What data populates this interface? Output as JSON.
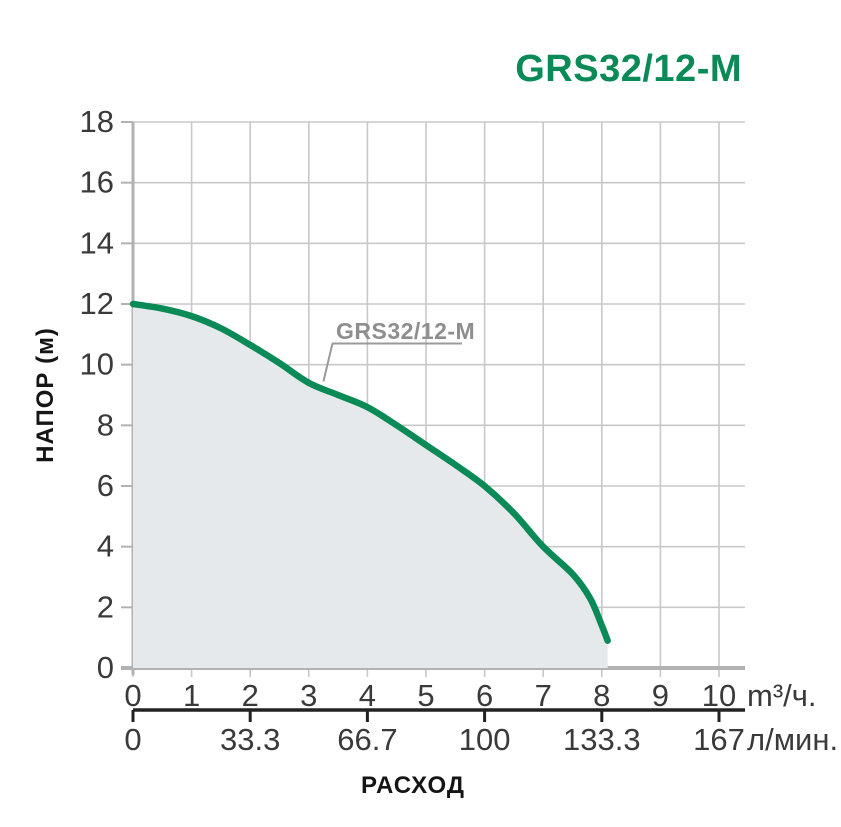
{
  "page": {
    "background": "#ffffff"
  },
  "header": {
    "title": "GRS32/12-M",
    "title_color": "#0a8a56"
  },
  "chart_data": {
    "type": "area",
    "title": "GRS32/12-M",
    "xlabel": "РАСХОД",
    "ylabel": "НАПОР (м)",
    "x_unit_primary": "m³/ч.",
    "x_unit_secondary": "л/мин.",
    "xlim": [
      0,
      10
    ],
    "ylim": [
      0,
      18
    ],
    "grid": true,
    "x_ticks": [
      0,
      1,
      2,
      3,
      4,
      5,
      6,
      7,
      8,
      9,
      10
    ],
    "y_ticks": [
      0,
      2,
      4,
      6,
      8,
      10,
      12,
      14,
      16,
      18
    ],
    "secondary_x_ticks": [
      {
        "pos": 0,
        "label": "0"
      },
      {
        "pos": 2,
        "label": "33.3"
      },
      {
        "pos": 4,
        "label": "66.7"
      },
      {
        "pos": 6,
        "label": "100"
      },
      {
        "pos": 8,
        "label": "133.3"
      },
      {
        "pos": 10,
        "label": "167"
      }
    ],
    "series": [
      {
        "name": "GRS32/12-M",
        "color": "#0a8a56",
        "fill_color": "#e6e9eb",
        "points": [
          [
            0,
            12
          ],
          [
            0.5,
            11.85
          ],
          [
            1,
            11.6
          ],
          [
            1.5,
            11.2
          ],
          [
            2,
            10.65
          ],
          [
            2.5,
            10.05
          ],
          [
            3,
            9.4
          ],
          [
            3.5,
            9.0
          ],
          [
            4,
            8.6
          ],
          [
            4.5,
            8.0
          ],
          [
            5,
            7.35
          ],
          [
            5.5,
            6.7
          ],
          [
            6,
            6.0
          ],
          [
            6.5,
            5.1
          ],
          [
            7,
            4.0
          ],
          [
            7.5,
            3.1
          ],
          [
            7.8,
            2.3
          ],
          [
            8,
            1.4
          ],
          [
            8.1,
            0.9
          ]
        ]
      }
    ],
    "annotation": {
      "text": "GRS32/12-M",
      "color": "#8e8e8e",
      "attach_x": 3.25,
      "attach_y": 9.45
    },
    "colors": {
      "grid": "#c8c8c8",
      "axis": "#b2b2b2",
      "secondary_axis": "#222222",
      "tick_text": "#3a3a3a",
      "label_text": "#151515"
    }
  }
}
